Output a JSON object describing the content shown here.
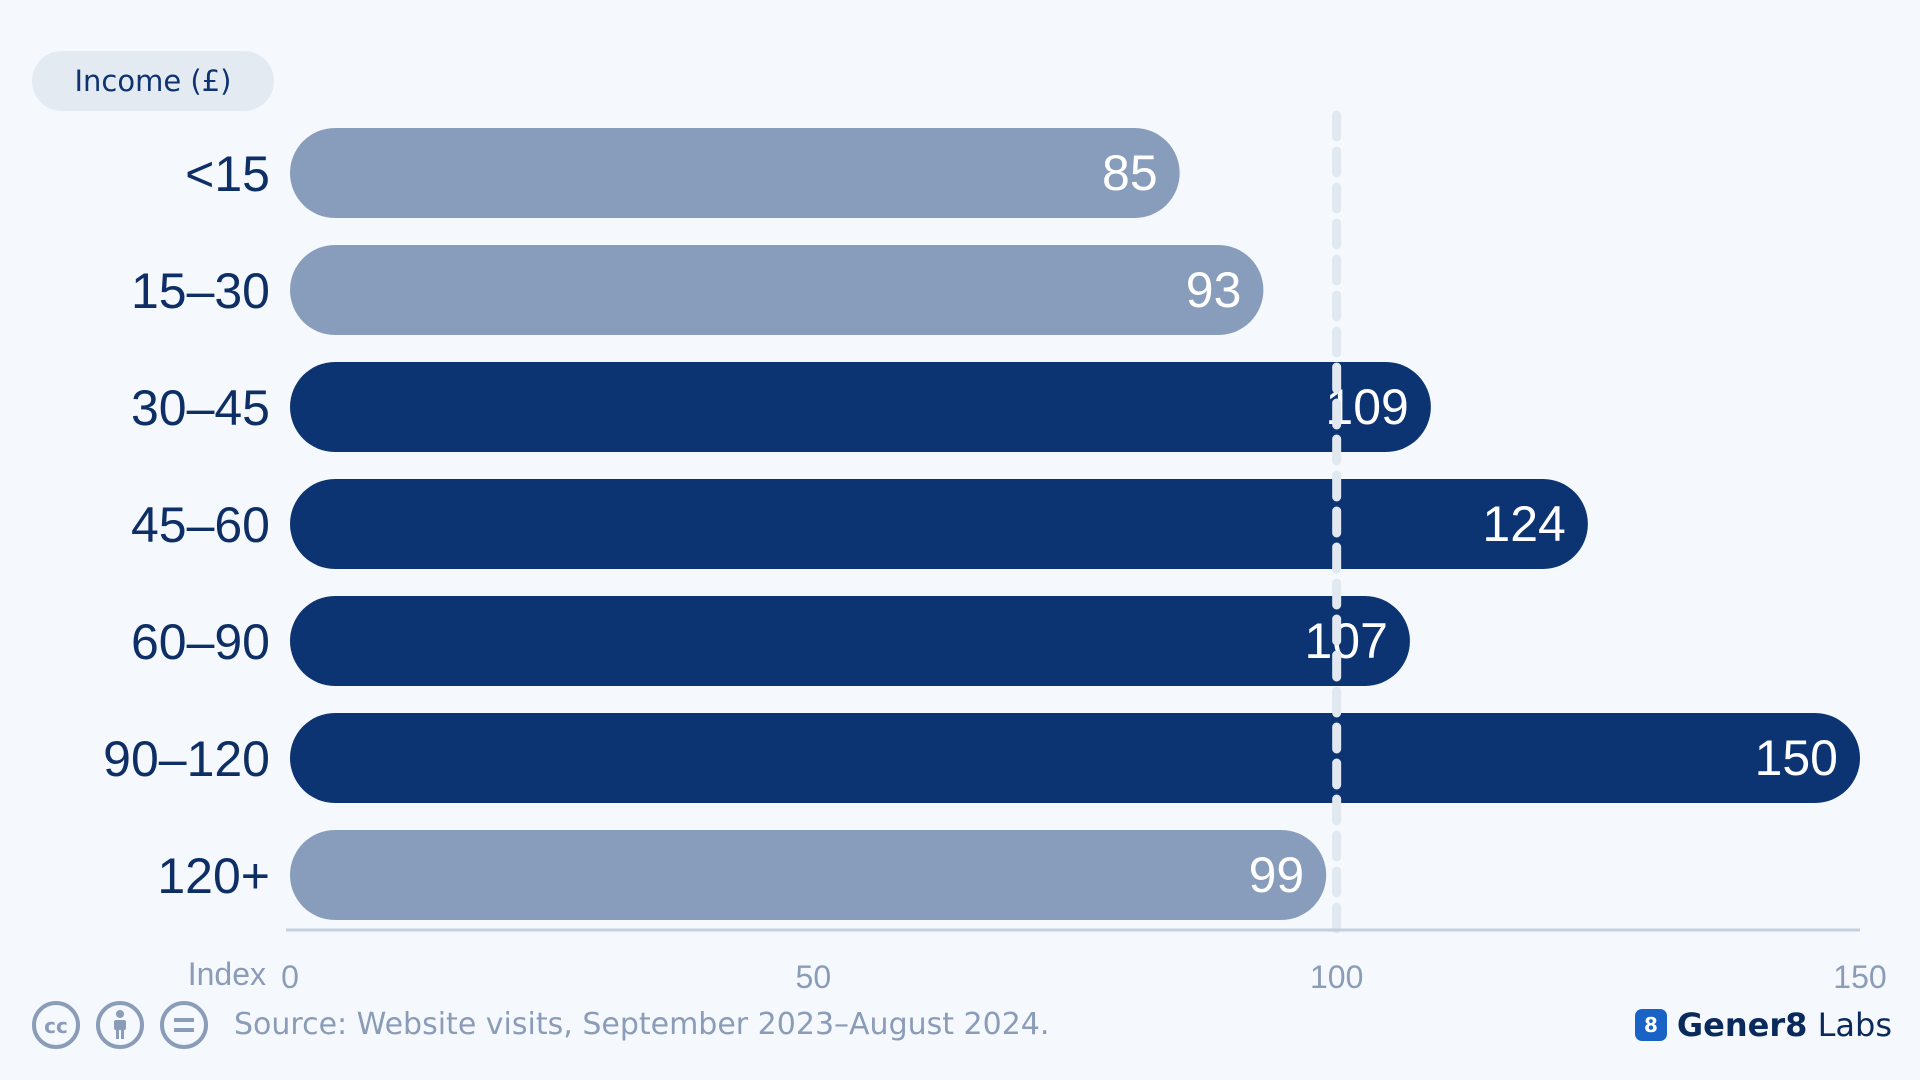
{
  "legend_pill": "Income (£)",
  "axis_title": "Index",
  "source": "Source: Website visits, September 2023–August 2024.",
  "brand": {
    "badge": "8",
    "name_bold": "Gener8",
    "name_rest": " Labs"
  },
  "icons": [
    "creative-commons-icon",
    "attribution-icon",
    "no-derivatives-icon"
  ],
  "colors": {
    "above_reference": "#0d3472",
    "below_reference": "#889dbc",
    "category_text": "#0d2f66",
    "axis_text": "#8a9cb8",
    "reference_line": "#e1e8f0",
    "background": "#f5f9fd"
  },
  "chart_data": {
    "type": "bar",
    "orientation": "horizontal",
    "categories": [
      "<15",
      "15–30",
      "30–45",
      "45–60",
      "60–90",
      "90–120",
      "120+"
    ],
    "values": [
      85,
      93,
      109,
      124,
      107,
      150,
      99
    ],
    "xlim": [
      0,
      150
    ],
    "xticks": [
      0,
      50,
      100,
      150
    ],
    "xlabel": "Index",
    "reference_line": 100,
    "data_labels": true,
    "grid": false
  }
}
